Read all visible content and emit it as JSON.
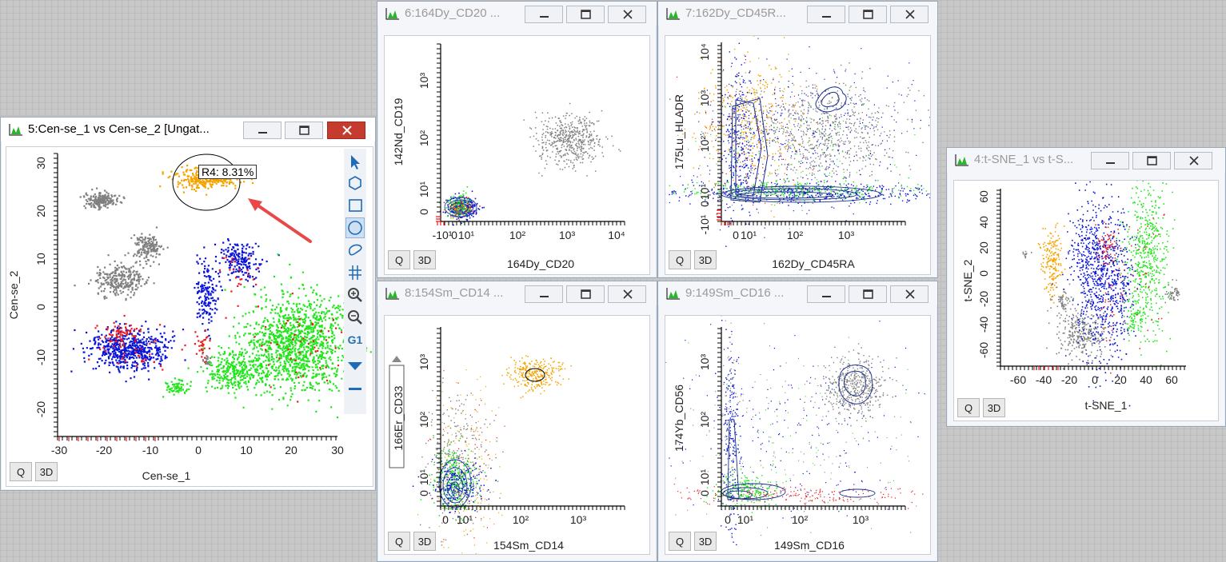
{
  "windows": {
    "w5": {
      "title": "5:Cen-se_1 vs Cen-se_2 [Ungat...",
      "xlabel": "Cen-se_1",
      "ylabel": "Cen-se_2",
      "xticks": [
        "-30",
        "-20",
        "-10",
        "0",
        "10",
        "20",
        "30"
      ],
      "yticks": [
        "30",
        "20",
        "10",
        "0",
        "-10",
        "-20"
      ],
      "region_label": "R4: 8.31%",
      "q": "Q",
      "d3": "3D",
      "gate_tool": "G1"
    },
    "w6": {
      "title": "6:164Dy_CD20 ...",
      "xlabel": "164Dy_CD20",
      "ylabel": "142Nd_CD19",
      "xticks": [
        "-10¹",
        "0",
        "10¹",
        "10²",
        "10³",
        "10⁴"
      ],
      "yticks": [
        "10³",
        "10²",
        "10¹",
        "0"
      ],
      "q": "Q",
      "d3": "3D"
    },
    "w7": {
      "title": "7:162Dy_CD45R...",
      "xlabel": "162Dy_CD45RA",
      "ylabel": "175Lu_HLADR",
      "xticks": [
        "0",
        "10¹",
        "10²",
        "10³"
      ],
      "yticks": [
        "10⁴",
        "10³",
        "10²",
        "10¹",
        "0",
        "-10¹"
      ],
      "q": "Q",
      "d3": "3D"
    },
    "w8": {
      "title": "8:154Sm_CD14 ...",
      "xlabel": "154Sm_CD14",
      "ylabel": "166Er_CD33",
      "xticks": [
        "0",
        "10¹",
        "10²",
        "10³"
      ],
      "yticks": [
        "10³",
        "10²",
        "10¹",
        "0"
      ],
      "q": "Q",
      "d3": "3D"
    },
    "w9": {
      "title": "9:149Sm_CD16 ...",
      "xlabel": "149Sm_CD16",
      "ylabel": "174Yb_CD56",
      "xticks": [
        "0",
        "10¹",
        "10²",
        "10³"
      ],
      "yticks": [
        "10³",
        "10²",
        "10¹",
        "0"
      ],
      "q": "Q",
      "d3": "3D"
    },
    "w4": {
      "title": "4:t-SNE_1 vs t-S...",
      "xlabel": "t-SNE_1",
      "ylabel": "t-SNE_2",
      "xticks": [
        "-60",
        "-40",
        "-20",
        "0",
        "20",
        "40",
        "60"
      ],
      "yticks": [
        "60",
        "40",
        "20",
        "0",
        "-20",
        "-40",
        "-60"
      ],
      "q": "Q",
      "d3": "3D"
    }
  },
  "colors": {
    "gray": "#808080",
    "orange": "#f5a300",
    "red": "#ee1c1c",
    "blue": "#0a14d8",
    "green": "#22e61c",
    "arrow": "#e84848"
  }
}
